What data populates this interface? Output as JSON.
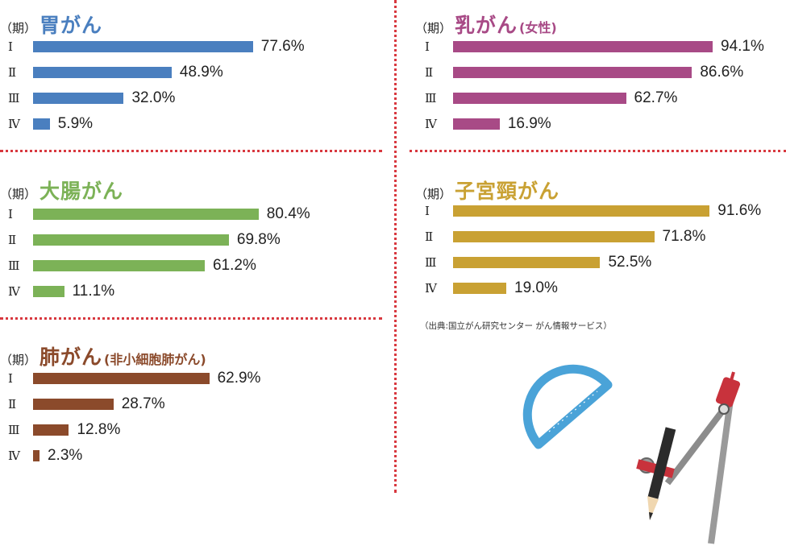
{
  "period_label": "（期）",
  "source_note": "（出典:国立がん研究センター がん情報サービス）",
  "chart_data": [
    {
      "type": "bar",
      "title": "胃がん",
      "subtitle": "",
      "color": "#4a7fbf",
      "categories": [
        "Ⅰ",
        "Ⅱ",
        "Ⅲ",
        "Ⅳ"
      ],
      "values": [
        77.6,
        48.9,
        32.0,
        5.9
      ],
      "value_labels": [
        "77.6%",
        "48.9%",
        "32.0%",
        "5.9%"
      ],
      "xlim": [
        0,
        100
      ]
    },
    {
      "type": "bar",
      "title": "乳がん",
      "subtitle": "(女性)",
      "color": "#a84a86",
      "categories": [
        "Ⅰ",
        "Ⅱ",
        "Ⅲ",
        "Ⅳ"
      ],
      "values": [
        94.1,
        86.6,
        62.7,
        16.9
      ],
      "value_labels": [
        "94.1%",
        "86.6%",
        "62.7%",
        "16.9%"
      ],
      "xlim": [
        0,
        100
      ]
    },
    {
      "type": "bar",
      "title": "大腸がん",
      "subtitle": "",
      "color": "#7cb257",
      "categories": [
        "Ⅰ",
        "Ⅱ",
        "Ⅲ",
        "Ⅳ"
      ],
      "values": [
        80.4,
        69.8,
        61.2,
        11.1
      ],
      "value_labels": [
        "80.4%",
        "69.8%",
        "61.2%",
        "11.1%"
      ],
      "xlim": [
        0,
        100
      ]
    },
    {
      "type": "bar",
      "title": "子宮頸がん",
      "subtitle": "",
      "color": "#c9a133",
      "categories": [
        "Ⅰ",
        "Ⅱ",
        "Ⅲ",
        "Ⅳ"
      ],
      "values": [
        91.6,
        71.8,
        52.5,
        19.0
      ],
      "value_labels": [
        "91.6%",
        "71.8%",
        "52.5%",
        "19.0%"
      ],
      "xlim": [
        0,
        100
      ]
    },
    {
      "type": "bar",
      "title": "肺がん",
      "subtitle": "(非小細胞肺がん)",
      "color": "#8b4a2b",
      "categories": [
        "Ⅰ",
        "Ⅱ",
        "Ⅲ",
        "Ⅳ"
      ],
      "values": [
        62.9,
        28.7,
        12.8,
        2.3
      ],
      "value_labels": [
        "62.9%",
        "28.7%",
        "12.8%",
        "2.3%"
      ],
      "xlim": [
        0,
        100
      ]
    }
  ]
}
